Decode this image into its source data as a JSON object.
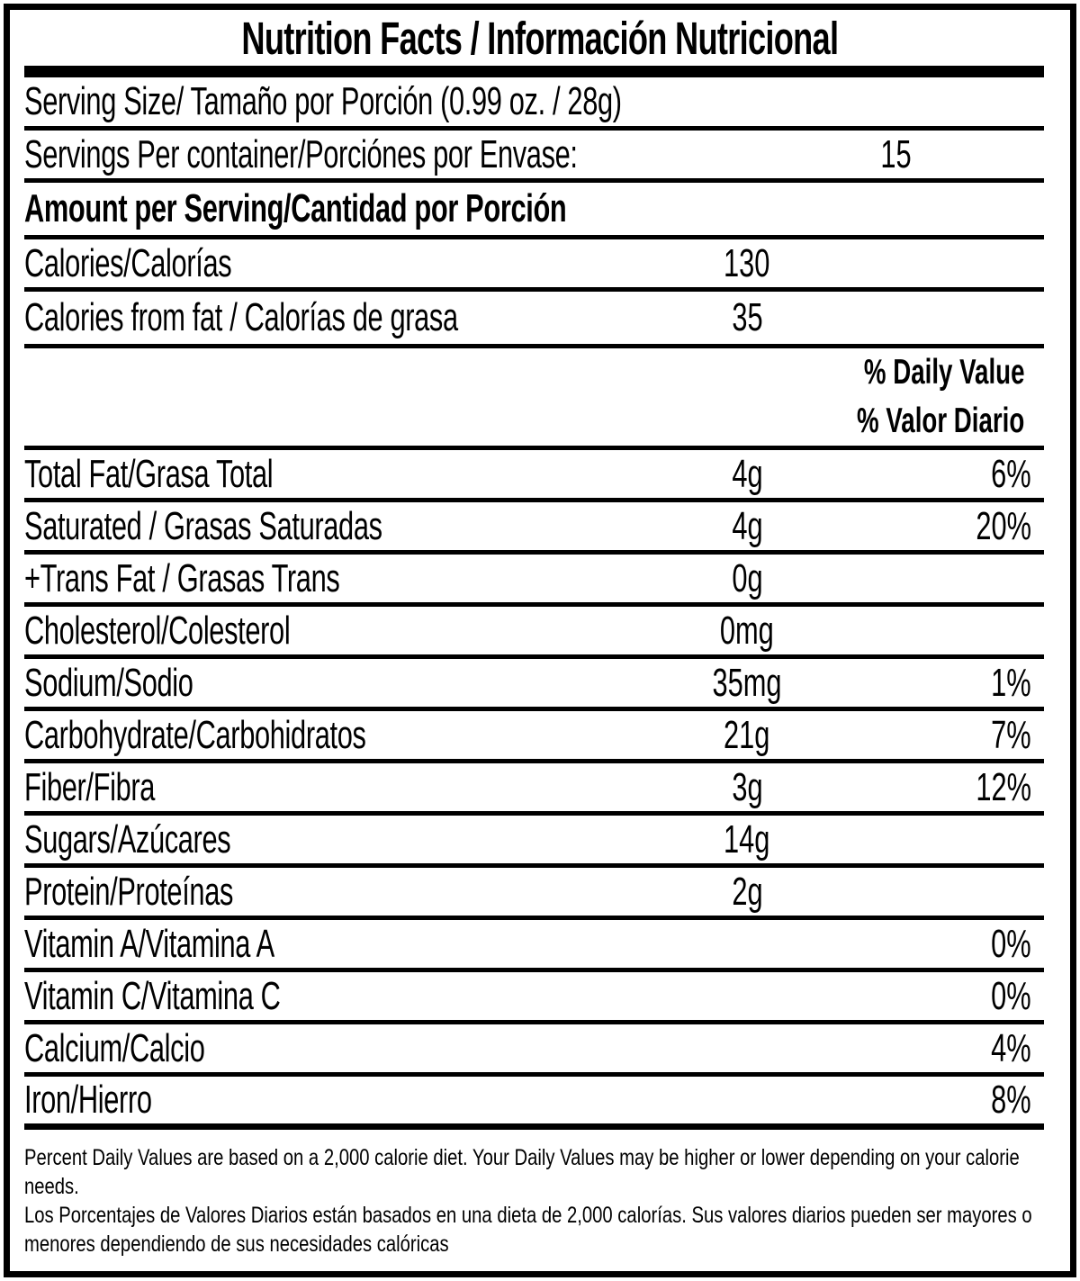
{
  "title": "Nutrition Facts / Información Nutricional",
  "serving": {
    "size_label": "Serving Size/ Tamaño por Porción  (0.99 oz. / 28g)",
    "per_container_label": "Servings Per container/Porciónes por Envase:",
    "per_container_value": "15"
  },
  "amount_header": "Amount per Serving/Cantidad por Porción",
  "calories": {
    "label": "Calories/Calorías",
    "value": "130"
  },
  "calories_from_fat": {
    "label": "Calories from fat / Calorías de grasa",
    "value": "35"
  },
  "daily_value_header": {
    "line1": "% Daily Value",
    "line2": "% Valor Diario"
  },
  "nutrients": [
    {
      "label": "Total Fat/Grasa Total",
      "amount": "4g",
      "dv": "6%"
    },
    {
      "label": "Saturated / Grasas Saturadas",
      "amount": "4g",
      "dv": "20%"
    },
    {
      "label": "+Trans Fat / Grasas Trans",
      "amount": "0g",
      "dv": ""
    },
    {
      "label": "Cholesterol/Colesterol",
      "amount": "0mg",
      "dv": ""
    },
    {
      "label": "Sodium/Sodio",
      "amount": "35mg",
      "dv": "1%"
    },
    {
      "label": "Carbohydrate/Carbohidratos",
      "amount": "21g",
      "dv": "7%"
    },
    {
      "label": "Fiber/Fibra",
      "amount": "3g",
      "dv": "12%"
    },
    {
      "label": "Sugars/Azúcares",
      "amount": "14g",
      "dv": ""
    },
    {
      "label": "Protein/Proteínas",
      "amount": "2g",
      "dv": ""
    },
    {
      "label": "Vitamin A/Vitamina A",
      "amount": "",
      "dv": "0%"
    },
    {
      "label": "Vitamin C/Vitamina C",
      "amount": "",
      "dv": "0%"
    },
    {
      "label": "Calcium/Calcio",
      "amount": "",
      "dv": "4%"
    },
    {
      "label": "Iron/Hierro",
      "amount": "",
      "dv": "8%"
    }
  ],
  "footnotes": {
    "english": "Percent Daily Values are based on a 2,000 calorie diet. Your Daily Values may be higher or lower depending on your calorie needs.",
    "spanish": "Los Porcentajes de Valores Diarios están basados en una dieta de 2,000 calorías. Sus valores diarios pueden ser mayores o menores dependiendo de sus necesidades calóricas"
  },
  "colors": {
    "ink": "#000000",
    "background": "#ffffff"
  }
}
